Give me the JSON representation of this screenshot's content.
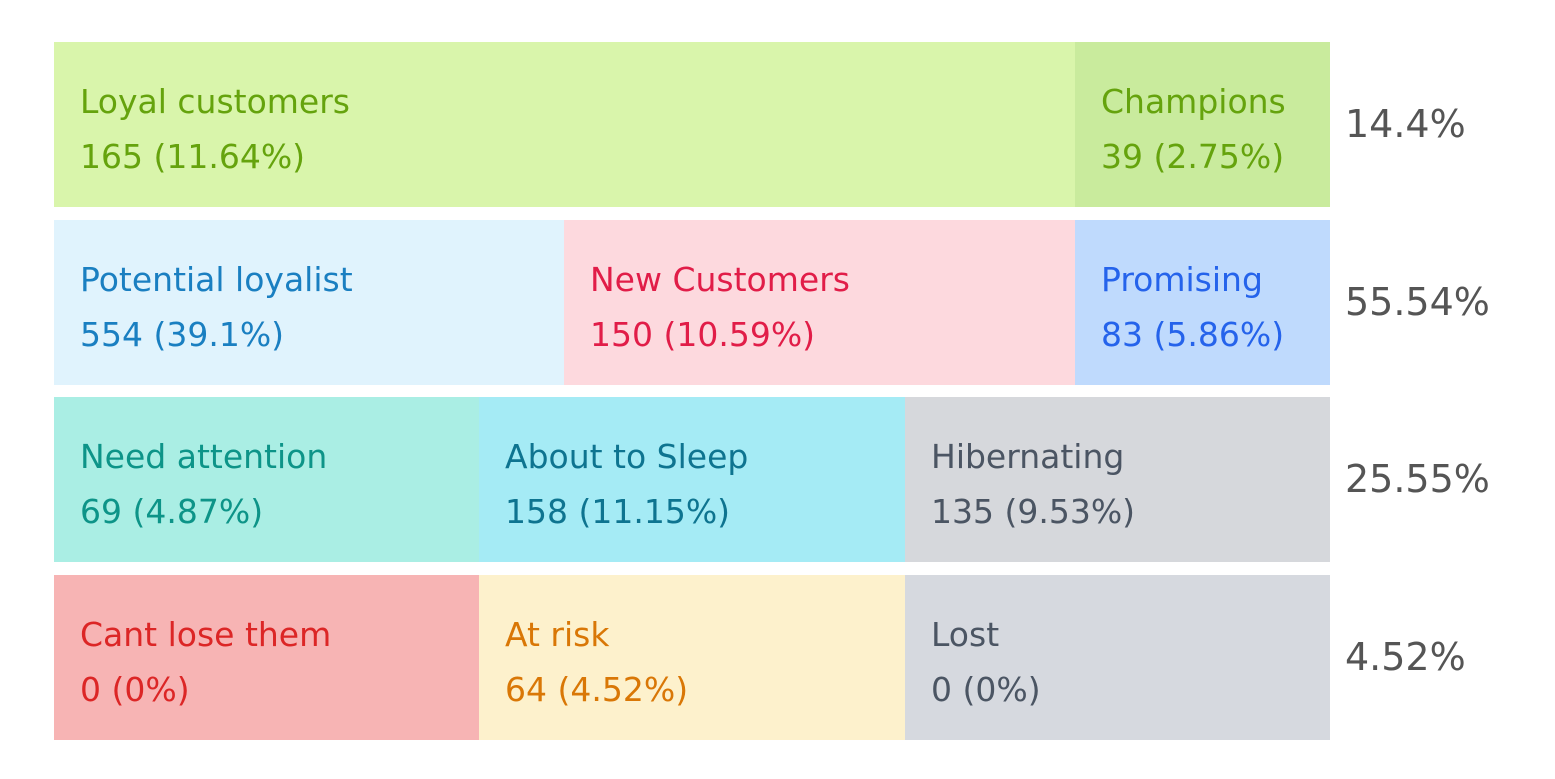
{
  "rows": [
    {
      "cells": [
        {
          "label": "Loyal customers",
          "value": "165 (11.64%)"
        },
        {
          "label": "Champions",
          "value": "39 (2.75%)"
        }
      ],
      "total": "14.4%"
    },
    {
      "cells": [
        {
          "label": "Potential loyalist",
          "value": "554 (39.1%)"
        },
        {
          "label": "New Customers",
          "value": "150 (10.59%)"
        },
        {
          "label": "Promising",
          "value": "83 (5.86%)"
        }
      ],
      "total": "55.54%"
    },
    {
      "cells": [
        {
          "label": "Need attention",
          "value": "69 (4.87%)"
        },
        {
          "label": "About to Sleep",
          "value": "158 (11.15%)"
        },
        {
          "label": "Hibernating",
          "value": "135 (9.53%)"
        }
      ],
      "total": "25.55%"
    },
    {
      "cells": [
        {
          "label": "Cant lose them",
          "value": "0 (0%)"
        },
        {
          "label": "At risk",
          "value": "64 (4.52%)"
        },
        {
          "label": "Lost",
          "value": "0 (0%)"
        }
      ],
      "total": "4.52%"
    }
  ]
}
